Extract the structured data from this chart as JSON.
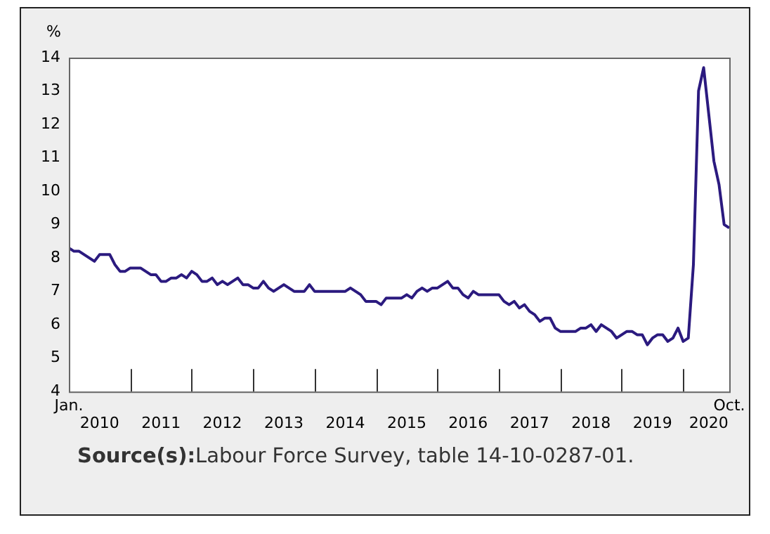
{
  "chart_data": {
    "type": "line",
    "ylabel": "%",
    "x": [
      "2010-01",
      "2010-02",
      "2010-03",
      "2010-04",
      "2010-05",
      "2010-06",
      "2010-07",
      "2010-08",
      "2010-09",
      "2010-10",
      "2010-11",
      "2010-12",
      "2011-01",
      "2011-02",
      "2011-03",
      "2011-04",
      "2011-05",
      "2011-06",
      "2011-07",
      "2011-08",
      "2011-09",
      "2011-10",
      "2011-11",
      "2011-12",
      "2012-01",
      "2012-02",
      "2012-03",
      "2012-04",
      "2012-05",
      "2012-06",
      "2012-07",
      "2012-08",
      "2012-09",
      "2012-10",
      "2012-11",
      "2012-12",
      "2013-01",
      "2013-02",
      "2013-03",
      "2013-04",
      "2013-05",
      "2013-06",
      "2013-07",
      "2013-08",
      "2013-09",
      "2013-10",
      "2013-11",
      "2013-12",
      "2014-01",
      "2014-02",
      "2014-03",
      "2014-04",
      "2014-05",
      "2014-06",
      "2014-07",
      "2014-08",
      "2014-09",
      "2014-10",
      "2014-11",
      "2014-12",
      "2015-01",
      "2015-02",
      "2015-03",
      "2015-04",
      "2015-05",
      "2015-06",
      "2015-07",
      "2015-08",
      "2015-09",
      "2015-10",
      "2015-11",
      "2015-12",
      "2016-01",
      "2016-02",
      "2016-03",
      "2016-04",
      "2016-05",
      "2016-06",
      "2016-07",
      "2016-08",
      "2016-09",
      "2016-10",
      "2016-11",
      "2016-12",
      "2017-01",
      "2017-02",
      "2017-03",
      "2017-04",
      "2017-05",
      "2017-06",
      "2017-07",
      "2017-08",
      "2017-09",
      "2017-10",
      "2017-11",
      "2017-12",
      "2018-01",
      "2018-02",
      "2018-03",
      "2018-04",
      "2018-05",
      "2018-06",
      "2018-07",
      "2018-08",
      "2018-09",
      "2018-10",
      "2018-11",
      "2018-12",
      "2019-01",
      "2019-02",
      "2019-03",
      "2019-04",
      "2019-05",
      "2019-06",
      "2019-07",
      "2019-08",
      "2019-09",
      "2019-10",
      "2019-11",
      "2019-12",
      "2020-01",
      "2020-02",
      "2020-03",
      "2020-04",
      "2020-05",
      "2020-06",
      "2020-07",
      "2020-08",
      "2020-09",
      "2020-10"
    ],
    "series": [
      {
        "color": "#2b1a7f",
        "values": [
          8.3,
          8.2,
          8.2,
          8.1,
          8.0,
          7.9,
          8.1,
          8.1,
          8.1,
          7.8,
          7.6,
          7.6,
          7.7,
          7.7,
          7.7,
          7.6,
          7.5,
          7.5,
          7.3,
          7.3,
          7.4,
          7.4,
          7.5,
          7.4,
          7.6,
          7.5,
          7.3,
          7.3,
          7.4,
          7.2,
          7.3,
          7.2,
          7.3,
          7.4,
          7.2,
          7.2,
          7.1,
          7.1,
          7.3,
          7.1,
          7.0,
          7.1,
          7.2,
          7.1,
          7.0,
          7.0,
          7.0,
          7.2,
          7.0,
          7.0,
          7.0,
          7.0,
          7.0,
          7.0,
          7.0,
          7.1,
          7.0,
          6.9,
          6.7,
          6.7,
          6.7,
          6.6,
          6.8,
          6.8,
          6.8,
          6.8,
          6.9,
          6.8,
          7.0,
          7.1,
          7.0,
          7.1,
          7.1,
          7.2,
          7.3,
          7.1,
          7.1,
          6.9,
          6.8,
          7.0,
          6.9,
          6.9,
          6.9,
          6.9,
          6.9,
          6.7,
          6.6,
          6.7,
          6.5,
          6.6,
          6.4,
          6.3,
          6.1,
          6.2,
          6.2,
          5.9,
          5.8,
          5.8,
          5.8,
          5.8,
          5.9,
          5.9,
          6.0,
          5.8,
          6.0,
          5.9,
          5.8,
          5.6,
          5.7,
          5.8,
          5.8,
          5.7,
          5.7,
          5.4,
          5.6,
          5.7,
          5.7,
          5.5,
          5.6,
          5.9,
          5.5,
          5.6,
          7.8,
          13.0,
          13.7,
          12.3,
          10.9,
          10.2,
          9.0,
          8.9
        ]
      }
    ],
    "xlim": [
      "2010-01",
      "2020-10"
    ],
    "xticks": [
      {
        "value": "2010-07",
        "label": "2010"
      },
      {
        "value": "2011-01",
        "label": null
      },
      {
        "value": "2011-07",
        "label": "2011"
      },
      {
        "value": "2012-01",
        "label": null
      },
      {
        "value": "2012-07",
        "label": "2012"
      },
      {
        "value": "2013-01",
        "label": null
      },
      {
        "value": "2013-07",
        "label": "2013"
      },
      {
        "value": "2014-01",
        "label": null
      },
      {
        "value": "2014-07",
        "label": "2014"
      },
      {
        "value": "2015-01",
        "label": null
      },
      {
        "value": "2015-07",
        "label": "2015"
      },
      {
        "value": "2016-01",
        "label": null
      },
      {
        "value": "2016-07",
        "label": "2016"
      },
      {
        "value": "2017-01",
        "label": null
      },
      {
        "value": "2017-07",
        "label": "2017"
      },
      {
        "value": "2018-01",
        "label": null
      },
      {
        "value": "2018-07",
        "label": "2018"
      },
      {
        "value": "2019-01",
        "label": null
      },
      {
        "value": "2019-07",
        "label": "2019"
      },
      {
        "value": "2020-01",
        "label": null
      },
      {
        "value": "2020-06",
        "label": "2020"
      }
    ],
    "ylim": [
      4,
      14
    ],
    "yticks": [
      4,
      5,
      6,
      7,
      8,
      9,
      10,
      11,
      12,
      13,
      14
    ],
    "grid": false,
    "legend": false,
    "marker": "none",
    "line_style": "solid",
    "annotations": [
      "Jan.",
      "Oct.",
      "Source(s):Labour Force Survey, table 14-10-0287-01."
    ]
  }
}
